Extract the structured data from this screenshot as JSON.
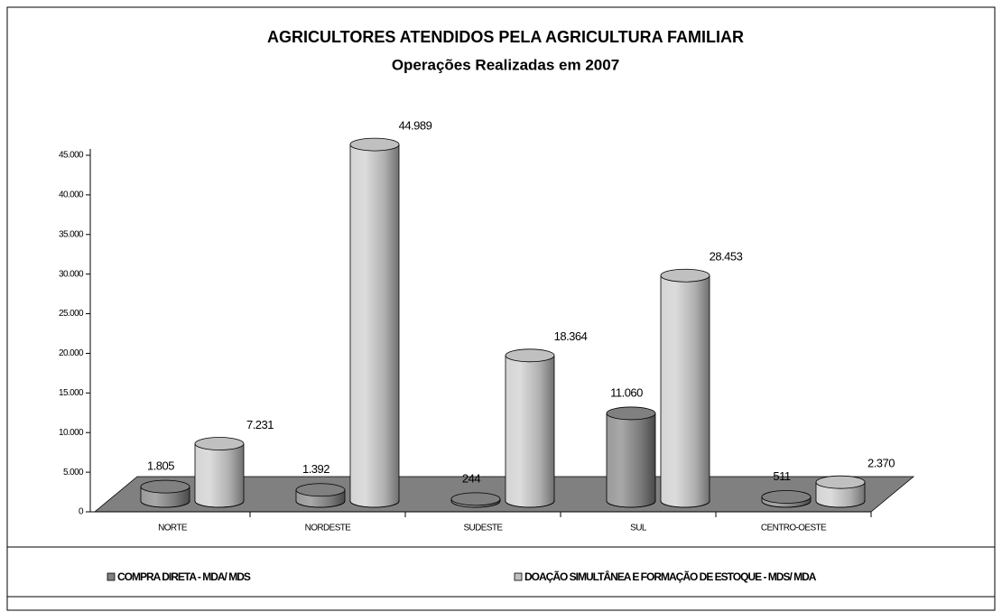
{
  "chart_data": {
    "type": "bar",
    "title": "AGRICULTORES ATENDIDOS PELA AGRICULTURA FAMILIAR",
    "subtitle": "Operações Realizadas em 2007",
    "categories": [
      "NORTE",
      "NORDESTE",
      "SUDESTE",
      "SUL",
      "CENTRO-OESTE"
    ],
    "series": [
      {
        "name": "COMPRA DIRETA - MDA/ MDS",
        "color": "#808080",
        "values": [
          1805,
          1392,
          244,
          11060,
          511
        ],
        "value_labels": [
          "1.805",
          "1.392",
          "244",
          "11.060",
          "511"
        ]
      },
      {
        "name": "DOAÇÃO SIMULTÂNEA E FORMAÇÃO DE ESTOQUE - MDS/ MDA",
        "color": "#c0c0c0",
        "values": [
          7231,
          44989,
          18364,
          28453,
          2370
        ],
        "value_labels": [
          "7.231",
          "44.989",
          "18.364",
          "28.453",
          "2.370"
        ]
      }
    ],
    "ylim": [
      0,
      45000
    ],
    "yticks": [
      0,
      {
        "value": 5000,
        "label": "5.000"
      },
      {
        "value": 10000,
        "label": "10.000"
      },
      {
        "value": 15000,
        "label": "15.000"
      },
      {
        "value": 20000,
        "label": "20.000"
      },
      {
        "value": 25000,
        "label": "25.000"
      },
      {
        "value": 30000,
        "label": "30.000"
      },
      {
        "value": 35000,
        "label": "35.000"
      },
      {
        "value": 40000,
        "label": "40.000"
      },
      {
        "value": 45000,
        "label": "45.000"
      }
    ],
    "legend": "bottom"
  }
}
